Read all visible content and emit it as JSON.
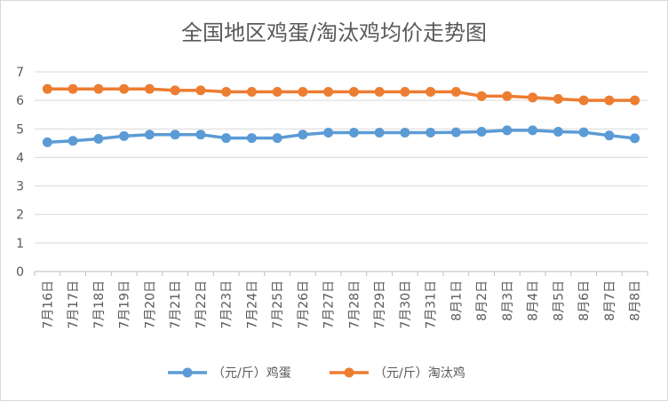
{
  "chart_data": {
    "type": "line",
    "title": "全国地区鸡蛋/淘汰鸡均价走势图",
    "categories": [
      "7月16日",
      "7月17日",
      "7月18日",
      "7月19日",
      "7月20日",
      "7月21日",
      "7月22日",
      "7月23日",
      "7月24日",
      "7月25日",
      "7月26日",
      "7月27日",
      "7月28日",
      "7月29日",
      "7月30日",
      "7月31日",
      "8月1日",
      "8月2日",
      "8月3日",
      "8月4日",
      "8月5日",
      "8月6日",
      "8月7日",
      "8月8日"
    ],
    "yticks": [
      "0",
      "1",
      "2",
      "3",
      "4",
      "5",
      "6",
      "7"
    ],
    "ylim": [
      0,
      7
    ],
    "grid": true,
    "legend_position": "bottom",
    "series": [
      {
        "name": "（元/斤）鸡蛋",
        "color": "#5B9BD5",
        "values": [
          4.53,
          4.58,
          4.65,
          4.75,
          4.8,
          4.8,
          4.8,
          4.68,
          4.68,
          4.68,
          4.8,
          4.87,
          4.87,
          4.87,
          4.87,
          4.87,
          4.88,
          4.9,
          4.95,
          4.95,
          4.9,
          4.88,
          4.77,
          4.67
        ]
      },
      {
        "name": "（元/斤）淘汰鸡",
        "color": "#ED7D31",
        "values": [
          6.4,
          6.4,
          6.4,
          6.4,
          6.4,
          6.35,
          6.35,
          6.3,
          6.3,
          6.3,
          6.3,
          6.3,
          6.3,
          6.3,
          6.3,
          6.3,
          6.3,
          6.15,
          6.15,
          6.1,
          6.05,
          6.0,
          6.0,
          6.0
        ]
      }
    ]
  }
}
